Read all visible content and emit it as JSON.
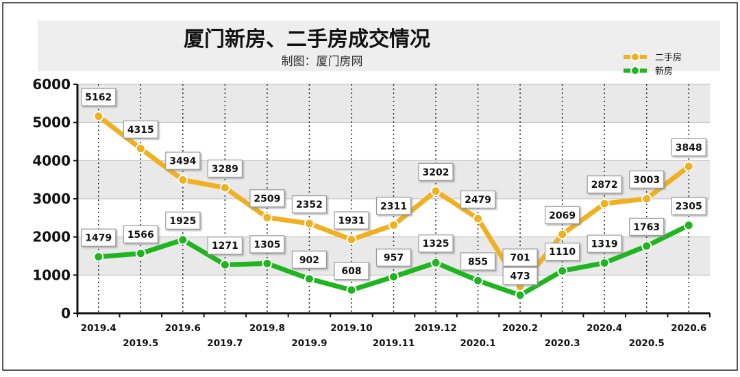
{
  "title": "厦门新房、二手房成交情况",
  "subtitle": "制图：厦门房网",
  "colors": {
    "second_hand": "#f0b020",
    "new_home": "#1fb51f",
    "band": "#e9e9e9",
    "title_band": "#eeeeee"
  },
  "chart_data": {
    "type": "line",
    "categories": [
      "2019.4",
      "2019.5",
      "2019.6",
      "2019.7",
      "2019.8",
      "2019.9",
      "2019.10",
      "2019.11",
      "2019.12",
      "2020.1",
      "2020.2",
      "2020.3",
      "2020.4",
      "2020.5",
      "2020.6"
    ],
    "ylim": [
      0,
      6000
    ],
    "yticks": [
      "0",
      "1000",
      "2000",
      "3000",
      "4000",
      "5000",
      "6000"
    ],
    "legend_position": "top-right",
    "grid": true,
    "series": [
      {
        "name": "二手房",
        "values": [
          5162,
          4315,
          3494,
          3289,
          2509,
          2352,
          1931,
          2311,
          3202,
          2479,
          701,
          2069,
          2872,
          3003,
          3848
        ]
      },
      {
        "name": "新房",
        "values": [
          1479,
          1566,
          1925,
          1271,
          1305,
          902,
          608,
          957,
          1325,
          855,
          473,
          1110,
          1319,
          1763,
          2305
        ]
      }
    ]
  }
}
